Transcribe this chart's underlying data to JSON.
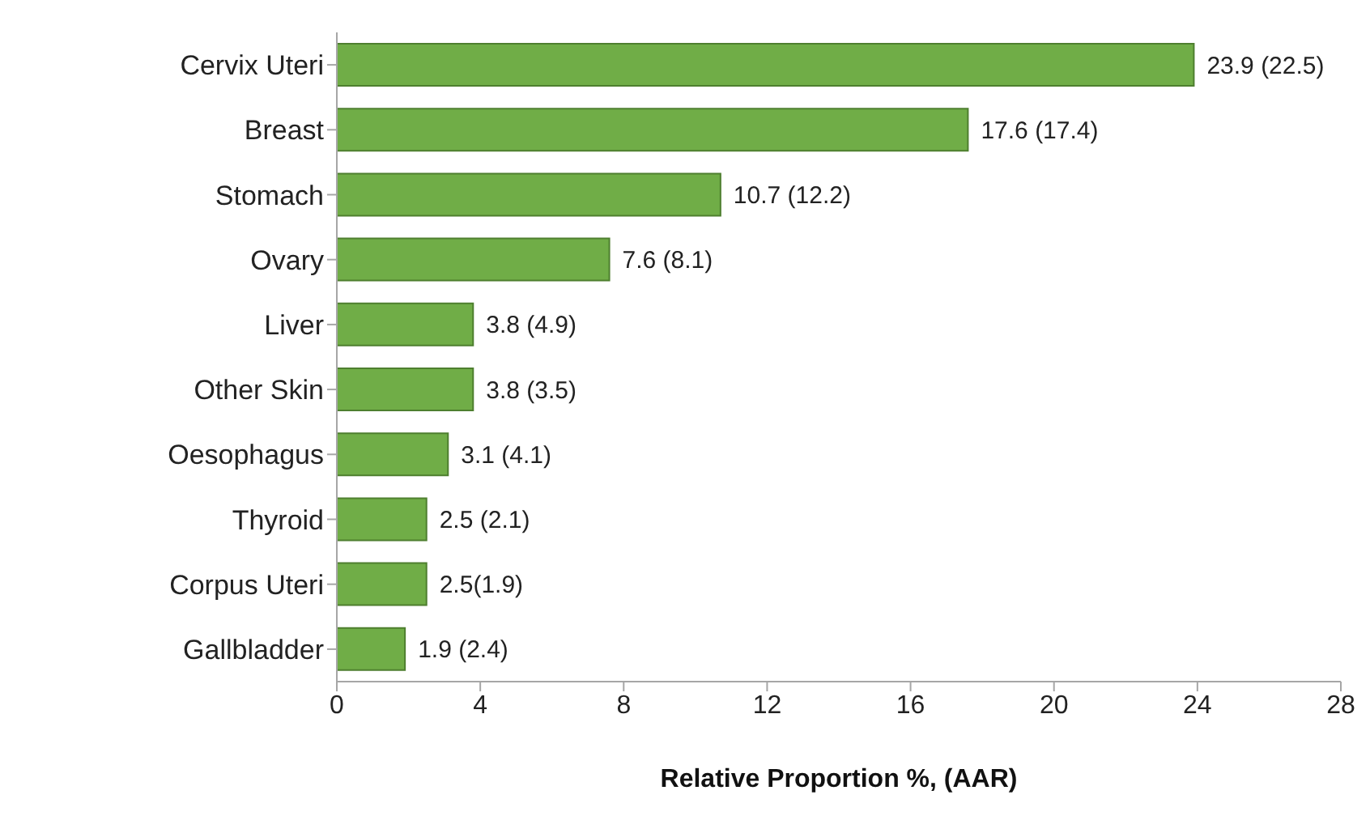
{
  "chart_data": {
    "type": "bar",
    "orientation": "horizontal",
    "xlabel": "Relative Proportion %, (AAR)",
    "categories": [
      "Cervix Uteri",
      "Breast",
      "Stomach",
      "Ovary",
      "Liver",
      "Other Skin",
      "Oesophagus",
      "Thyroid",
      "Corpus Uteri",
      "Gallbladder"
    ],
    "values": [
      23.9,
      17.6,
      10.7,
      7.6,
      3.8,
      3.8,
      3.1,
      2.5,
      2.5,
      1.9
    ],
    "value_labels": [
      "23.9 (22.5)",
      "17.6 (17.4)",
      "10.7 (12.2)",
      "7.6 (8.1)",
      "3.8 (4.9)",
      "3.8 (3.5)",
      "3.1 (4.1)",
      "2.5 (2.1)",
      "2.5(1.9)",
      "1.9 (2.4)"
    ],
    "color": "#70ad47",
    "xlim": [
      0,
      28
    ],
    "xticks": [
      0,
      4,
      8,
      12,
      16,
      20,
      24,
      28
    ],
    "grid": false,
    "legend": false
  }
}
